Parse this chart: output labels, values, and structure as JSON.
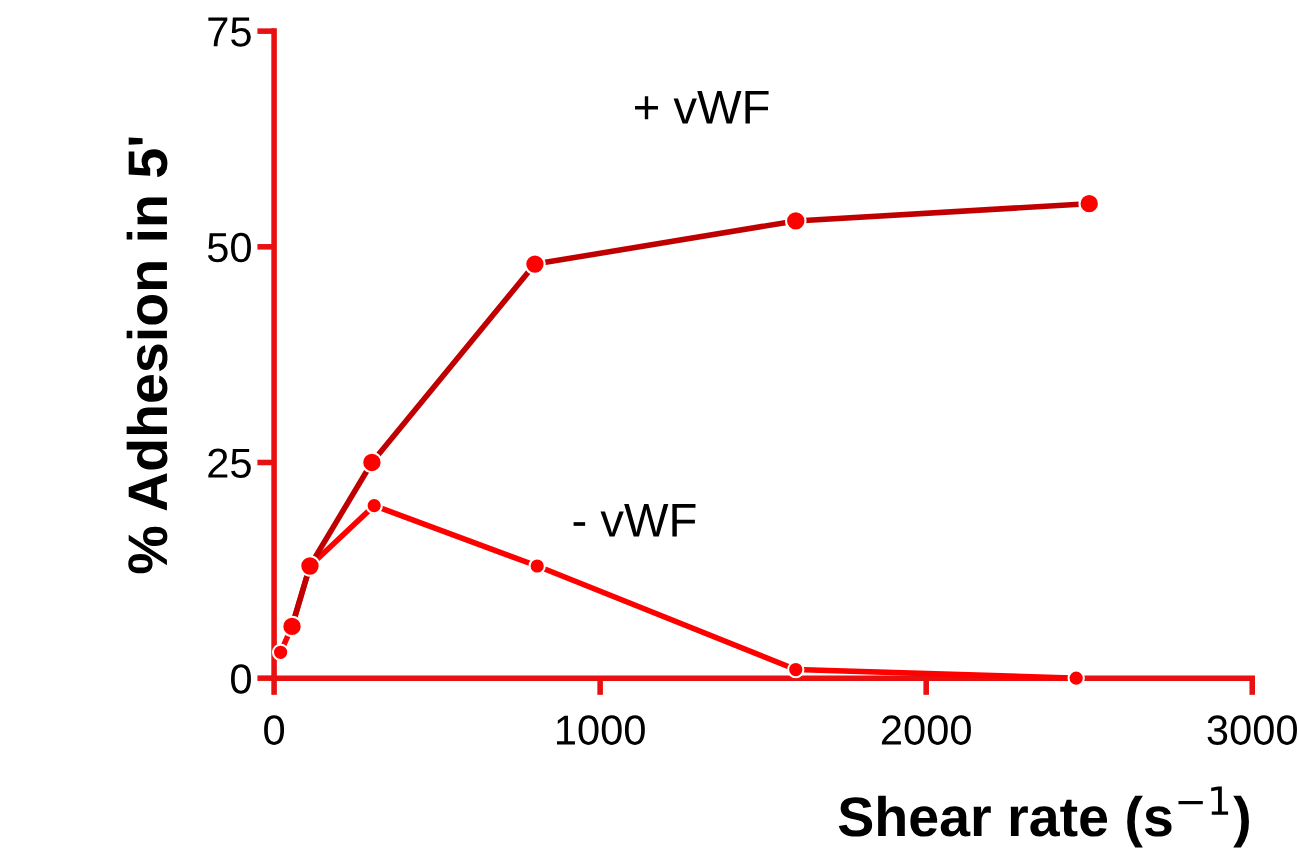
{
  "chart_data": {
    "type": "line",
    "xlabel": "Shear rate (s$^{−1}$)",
    "ylabel": "% Adhesion in 5'",
    "xlim": [
      0,
      3000
    ],
    "xticks": [
      0,
      1000,
      2000,
      3000
    ],
    "ylim": [
      0,
      75
    ],
    "yticks": [
      0,
      25,
      50,
      75
    ],
    "grid": false,
    "legend": false,
    "marker": "circle",
    "line_style": "solid",
    "series": [
      {
        "name": "+ vWF",
        "color": "#c00000",
        "x": [
          55,
          110,
          300,
          800,
          1600,
          2500
        ],
        "values": [
          6,
          13,
          25,
          48,
          53,
          55
        ]
      },
      {
        "name": "- vWF",
        "color": "#ff0000",
        "x": [
          20,
          55,
          110,
          307,
          807,
          1600,
          2460
        ],
        "values": [
          3,
          6,
          13,
          20,
          13,
          1,
          0
        ]
      }
    ]
  }
}
